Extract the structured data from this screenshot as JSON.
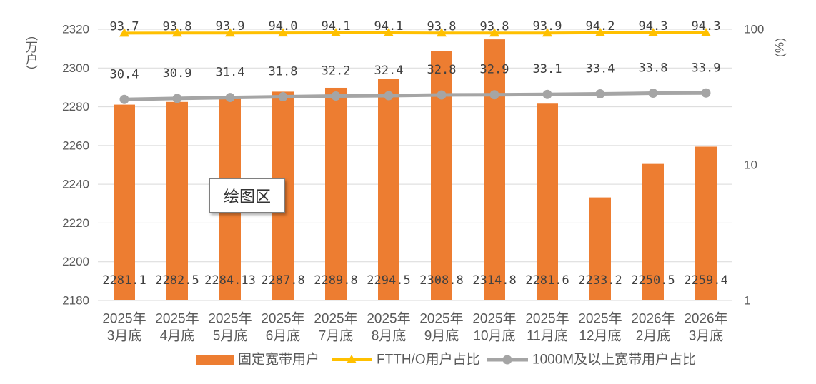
{
  "chart_data": {
    "type": "bar",
    "categories": [
      [
        "2025年",
        "3月底"
      ],
      [
        "2025年",
        "4月底"
      ],
      [
        "2025年",
        "5月底"
      ],
      [
        "2025年",
        "6月底"
      ],
      [
        "2025年",
        "7月底"
      ],
      [
        "2025年",
        "8月底"
      ],
      [
        "2025年",
        "9月底"
      ],
      [
        "2025年",
        "10月底"
      ],
      [
        "2025年",
        "11月底"
      ],
      [
        "2025年",
        "12月底"
      ],
      [
        "2026年",
        "2月底"
      ],
      [
        "2026年",
        "3月底"
      ]
    ],
    "series": [
      {
        "name": "固定宽带用户",
        "type": "bar",
        "axis": "left",
        "color": "#ED7D31",
        "values": [
          2281.1,
          2282.5,
          2284.13,
          2287.8,
          2289.8,
          2294.5,
          2308.8,
          2314.8,
          2281.6,
          2233.2,
          2250.5,
          2259.4
        ],
        "labels": [
          "2281.1",
          "2282.5",
          "2284.13",
          "2287.8",
          "2289.8",
          "2294.5",
          "2308.8",
          "2314.8",
          "2281.6",
          "2233.2",
          "2250.5",
          "2259.4"
        ]
      },
      {
        "name": "FTTH/O用户占比",
        "type": "line",
        "axis": "right",
        "marker": "triangle",
        "color": "#FFC000",
        "values": [
          93.7,
          93.8,
          93.9,
          94.0,
          94.1,
          94.1,
          93.8,
          93.8,
          93.9,
          94.2,
          94.3,
          94.3
        ],
        "labels": [
          "93.7",
          "93.8",
          "93.9",
          "94.0",
          "94.1",
          "94.1",
          "93.8",
          "93.8",
          "93.9",
          "94.2",
          "94.3",
          "94.3"
        ]
      },
      {
        "name": "1000M及以上宽带用户占比",
        "type": "line",
        "axis": "right",
        "marker": "circle",
        "color": "#A5A5A5",
        "values": [
          30.4,
          30.9,
          31.4,
          31.8,
          32.2,
          32.4,
          32.8,
          32.9,
          33.1,
          33.4,
          33.8,
          33.9
        ],
        "labels": [
          "30.4",
          "30.9",
          "31.4",
          "31.8",
          "32.2",
          "32.4",
          "32.8",
          "32.9",
          "33.1",
          "33.4",
          "33.8",
          "33.9"
        ]
      }
    ],
    "y_left": {
      "label": "（万户）",
      "min": 2180,
      "max": 2320,
      "ticks": [
        "2180",
        "2200",
        "2220",
        "2240",
        "2260",
        "2280",
        "2300",
        "2320"
      ]
    },
    "y_right": {
      "label": "（%）",
      "scale": "log",
      "min": 1,
      "max": 100,
      "ticks": [
        "1",
        "10",
        "100"
      ]
    },
    "grid": true,
    "data_labels": true,
    "legend_position": "bottom"
  },
  "plot_area_tooltip": {
    "label": "绘图区"
  }
}
